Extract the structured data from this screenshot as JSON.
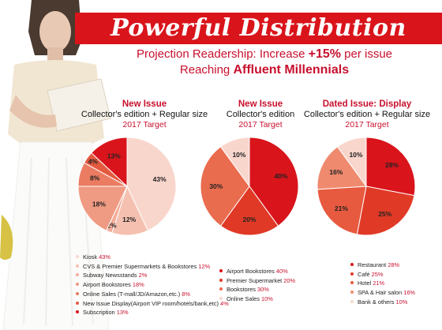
{
  "header": {
    "title": "Powerful Distribution",
    "subtitle_prefix": "Projection Readership: Increase ",
    "subtitle_highlight": "+15%",
    "subtitle_suffix": " per issue",
    "subtitle2_prefix": "Reaching ",
    "subtitle2_highlight": "Affluent Millennials"
  },
  "columns": [
    {
      "title": "New Issue",
      "line2": "Collector's edition + Regular size",
      "line3": "2017 Target"
    },
    {
      "title": "New Issue",
      "line2": "Collector's edition",
      "line3": "2017 Target"
    },
    {
      "title": "Dated Issue: Display",
      "line2": "Collector's edition + Regular size",
      "line3": "2017 Target"
    }
  ],
  "chart_data": [
    {
      "type": "pie",
      "title": "New Issue",
      "slices": [
        {
          "label": "Kiosk",
          "value": 43,
          "display": "43%",
          "legend_value": "43%",
          "color": "#f9d6cc"
        },
        {
          "label": "CVS & Premier Supermarkets & Bookstores",
          "value": 12,
          "display": "12%",
          "legend_value": "12%",
          "color": "#f5c0b0"
        },
        {
          "label": "Subway Newsstands",
          "value": 2,
          "display": "2%",
          "legend_value": "2%",
          "color": "#f3ad9a"
        },
        {
          "label": "Airport Bookstores",
          "value": 18,
          "display": "18%",
          "legend_value": "18%",
          "color": "#ef9a83"
        },
        {
          "label": "Online Sales (T-mall/JD/Amazon,etc.)",
          "value": 8,
          "display": "8%",
          "legend_value": "8%",
          "color": "#eb7c62"
        },
        {
          "label": "New Issue Display(Airport VIP room/hotels/bank,etc)",
          "value": 4,
          "display": "4%",
          "legend_value": "4%",
          "color": "#e45a3f"
        },
        {
          "label": "Subscription",
          "value": 13,
          "display": "13%",
          "legend_value": "13%",
          "color": "#d9141b"
        }
      ]
    },
    {
      "type": "pie",
      "title": "New Issue",
      "slices": [
        {
          "label": "Airport Bookstores",
          "value": 40,
          "display": "40%",
          "legend_value": "40%",
          "color": "#d9141b"
        },
        {
          "label": "Premier Supermarket",
          "value": 20,
          "display": "20%",
          "legend_value": "20%",
          "color": "#e03a27"
        },
        {
          "label": "Bookstores",
          "value": 30,
          "display": "30%",
          "legend_value": "30%",
          "color": "#ea6c4f"
        },
        {
          "label": "Online Sales",
          "value": 10,
          "display": "10%",
          "legend_value": "10%",
          "color": "#f9d6cc"
        }
      ]
    },
    {
      "type": "pie",
      "title": "Dated Issue: Display",
      "slices": [
        {
          "label": "Restaurant",
          "value": 28,
          "display": "28%",
          "legend_value": "28%",
          "color": "#d9141b"
        },
        {
          "label": "Café",
          "value": 25,
          "display": "25%",
          "legend_value": "25%",
          "color": "#e03a27"
        },
        {
          "label": "Hotel",
          "value": 21,
          "display": "21%",
          "legend_value": "21%",
          "color": "#e85a3f"
        },
        {
          "label": "SPA & Hair salon",
          "value": 16,
          "display": "16%",
          "legend_value": "16%",
          "color": "#ef8a6f"
        },
        {
          "label": "Bank & others",
          "value": 10,
          "display": "10%",
          "legend_value": "10%",
          "color": "#f9d6cc"
        }
      ]
    }
  ]
}
